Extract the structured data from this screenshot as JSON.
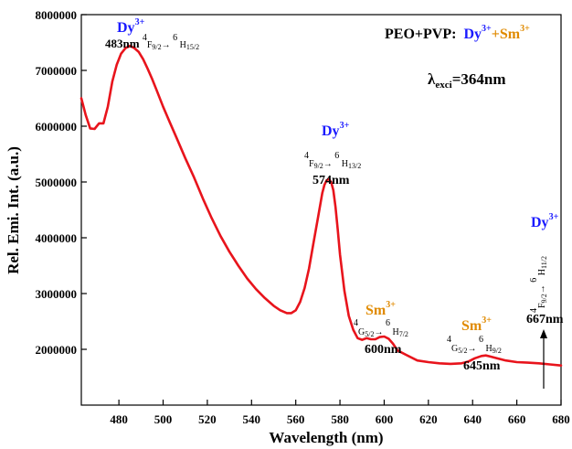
{
  "chart_data": {
    "type": "line",
    "xlabel": "Wavelength (nm)",
    "ylabel": "Rel. Emi. Int. (a.u.)",
    "xlim": [
      463,
      680
    ],
    "ylim": [
      1000000,
      8000000
    ],
    "x_ticks": [
      480,
      500,
      520,
      540,
      560,
      580,
      600,
      620,
      640,
      660,
      680
    ],
    "y_ticks": [
      2000000,
      3000000,
      4000000,
      5000000,
      6000000,
      7000000,
      8000000
    ],
    "x_tick_labels": [
      "480",
      "500",
      "520",
      "540",
      "560",
      "580",
      "600",
      "620",
      "640",
      "660",
      "680"
    ],
    "y_tick_labels": [
      "2000000",
      "3000000",
      "4000000",
      "5000000",
      "6000000",
      "7000000",
      "8000000"
    ],
    "grid": false,
    "line_color": "#e8141c",
    "series": [
      {
        "x": [
          463,
          465,
          467,
          469,
          471,
          473,
          475,
          477,
          479,
          481,
          483,
          485,
          487,
          489,
          491,
          493,
          495,
          497,
          500,
          503,
          506,
          510,
          514,
          518,
          522,
          526,
          530,
          534,
          538,
          542,
          546,
          550,
          553,
          556,
          558,
          560,
          562,
          564,
          566,
          568,
          570,
          572,
          573,
          574,
          575,
          576,
          577,
          578,
          579,
          580,
          582,
          584,
          586,
          588,
          590,
          592,
          594,
          596,
          598,
          600,
          602,
          604,
          606,
          610,
          615,
          620,
          625,
          630,
          635,
          638,
          641,
          644,
          646,
          648,
          651,
          655,
          660,
          665,
          670,
          675,
          680
        ],
        "y": [
          6500000,
          6200000,
          5960000,
          5950000,
          6050000,
          6050000,
          6350000,
          6800000,
          7100000,
          7300000,
          7400000,
          7440000,
          7400000,
          7330000,
          7200000,
          7030000,
          6850000,
          6650000,
          6350000,
          6070000,
          5800000,
          5430000,
          5080000,
          4700000,
          4350000,
          4030000,
          3750000,
          3500000,
          3270000,
          3080000,
          2920000,
          2780000,
          2700000,
          2650000,
          2650000,
          2700000,
          2850000,
          3100000,
          3450000,
          3900000,
          4350000,
          4800000,
          4950000,
          5030000,
          5050000,
          5000000,
          4850000,
          4550000,
          4150000,
          3700000,
          3050000,
          2600000,
          2350000,
          2200000,
          2170000,
          2200000,
          2180000,
          2180000,
          2220000,
          2230000,
          2190000,
          2100000,
          1980000,
          1900000,
          1800000,
          1770000,
          1750000,
          1740000,
          1750000,
          1780000,
          1840000,
          1880000,
          1890000,
          1870000,
          1840000,
          1800000,
          1770000,
          1760000,
          1750000,
          1730000,
          1710000
        ]
      }
    ]
  },
  "legend": {
    "host": "PEO+PVP:",
    "ion1": "Dy",
    "ion1_sup": "3+",
    "plus": "+",
    "ion2": "Sm",
    "ion2_sup": "3+"
  },
  "excitation": {
    "lambda": "λ",
    "sub": "exci",
    "value": "=364nm"
  },
  "colors": {
    "dy": "#1a1aff",
    "sm": "#e08a00",
    "curve": "#e8141c",
    "text": "#000000"
  },
  "peaks": [
    {
      "ion": "Dy",
      "ion_sup": "3+",
      "wavelength": "483nm",
      "transition": "4F9/2→6H15/2"
    },
    {
      "ion": "Dy",
      "ion_sup": "3+",
      "wavelength": "574nm",
      "transition": "4F9/2→6H13/2"
    },
    {
      "ion": "Sm",
      "ion_sup": "3+",
      "wavelength": "600nm",
      "transition": "4G5/2→6H7/2"
    },
    {
      "ion": "Sm",
      "ion_sup": "3+",
      "wavelength": "645nm",
      "transition": "4G5/2→6H9/2"
    },
    {
      "ion": "Dy",
      "ion_sup": "3+",
      "wavelength": "667nm",
      "transition": "4F9/2→6H11/2"
    }
  ],
  "sym": {
    "arrow": "→"
  }
}
